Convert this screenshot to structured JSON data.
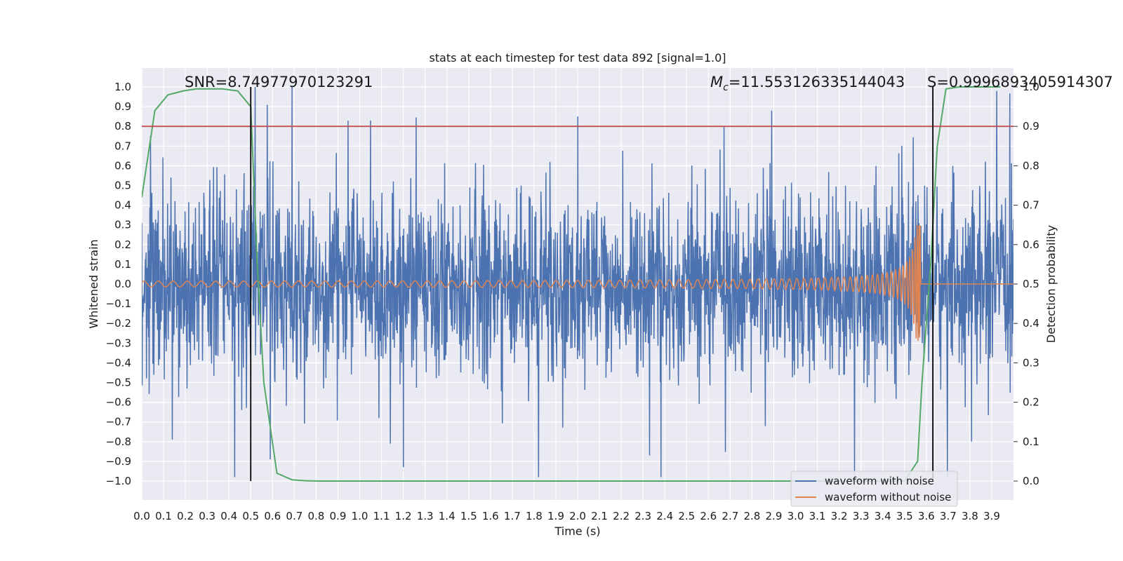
{
  "chart_data": {
    "type": "line",
    "title": "stats at each timestep for test data 892 [signal=1.0]",
    "xlabel": "Time (s)",
    "ylabel_left": "Whitened strain",
    "ylabel_right": "Detection probability",
    "xlim": [
      0.0,
      4.0
    ],
    "ylim_left": [
      -1.1,
      1.1
    ],
    "ylim_right": [
      -0.05,
      1.05
    ],
    "x_ticks": [
      "0.0",
      "0.1",
      "0.2",
      "0.3",
      "0.4",
      "0.5",
      "0.6",
      "0.7",
      "0.8",
      "0.9",
      "1.0",
      "1.1",
      "1.2",
      "1.3",
      "1.4",
      "1.5",
      "1.6",
      "1.7",
      "1.8",
      "1.9",
      "2.0",
      "2.1",
      "2.2",
      "2.3",
      "2.4",
      "2.5",
      "2.6",
      "2.7",
      "2.8",
      "2.9",
      "3.0",
      "3.1",
      "3.2",
      "3.3",
      "3.4",
      "3.5",
      "3.6",
      "3.7",
      "3.8",
      "3.9"
    ],
    "y_ticks_left": [
      "1.0",
      "0.9",
      "0.8",
      "0.7",
      "0.6",
      "0.5",
      "0.4",
      "0.3",
      "0.2",
      "0.1",
      "0.0",
      "−0.1",
      "−0.2",
      "−0.3",
      "−0.4",
      "−0.5",
      "−0.6",
      "−0.7",
      "−0.8",
      "−0.9",
      "−1.0"
    ],
    "y_ticks_right": [
      "1.0",
      "0.9",
      "0.8",
      "0.7",
      "0.6",
      "0.5",
      "0.4",
      "0.3",
      "0.2",
      "0.1",
      "0.0"
    ],
    "grid": true,
    "legend_position": "bottom-right",
    "annotations": {
      "snr": "SNR=8.74977970123291",
      "mc": "=11.553126335144043",
      "mc_symbol": "M",
      "mc_subscript": "c",
      "s": "S=0.9996893405914307"
    },
    "threshold": {
      "y": 0.8,
      "color": "#c44e52"
    },
    "vlines": [
      0.5,
      3.63
    ],
    "series": [
      {
        "name": "waveform with noise",
        "color": "#4c72b0",
        "axis": "left",
        "kind": "noise",
        "amplitude_typical": 0.3,
        "peaks": [
          {
            "x": 0.04,
            "y": 0.75
          },
          {
            "x": 0.52,
            "y": 1.0
          },
          {
            "x": 0.69,
            "y": 1.0
          },
          {
            "x": 1.05,
            "y": 0.83
          },
          {
            "x": 2.0,
            "y": 0.85
          },
          {
            "x": 2.89,
            "y": 0.88
          },
          {
            "x": 1.2,
            "y": -0.93
          },
          {
            "x": 3.27,
            "y": -0.97
          },
          {
            "x": 0.14,
            "y": -0.79
          },
          {
            "x": 0.59,
            "y": -0.89
          },
          {
            "x": 2.33,
            "y": -0.87
          },
          {
            "x": 1.14,
            "y": -0.81
          }
        ]
      },
      {
        "name": "waveform without noise",
        "color": "#dd8452",
        "axis": "left",
        "kind": "chirp",
        "t_merger": 3.575,
        "amplitude_start": 0.02,
        "amplitude_peak": 0.3
      },
      {
        "name": "",
        "color": "#55a868",
        "axis": "right",
        "kind": "probability",
        "x": [
          0.0,
          0.06,
          0.12,
          0.19,
          0.25,
          0.31,
          0.37,
          0.44,
          0.5,
          0.53,
          0.56,
          0.62,
          0.69,
          0.75,
          0.81,
          1.0,
          2.0,
          3.0,
          3.5,
          3.56,
          3.58,
          3.62,
          3.65,
          3.69,
          3.75,
          3.94
        ],
        "y": [
          0.72,
          0.94,
          0.98,
          0.99,
          0.995,
          0.995,
          0.995,
          0.99,
          0.95,
          0.55,
          0.25,
          0.02,
          0.003,
          0.001,
          0.0,
          0.0,
          0.0,
          0.0,
          0.0,
          0.05,
          0.25,
          0.55,
          0.85,
          0.995,
          1.0,
          1.0
        ]
      }
    ]
  }
}
